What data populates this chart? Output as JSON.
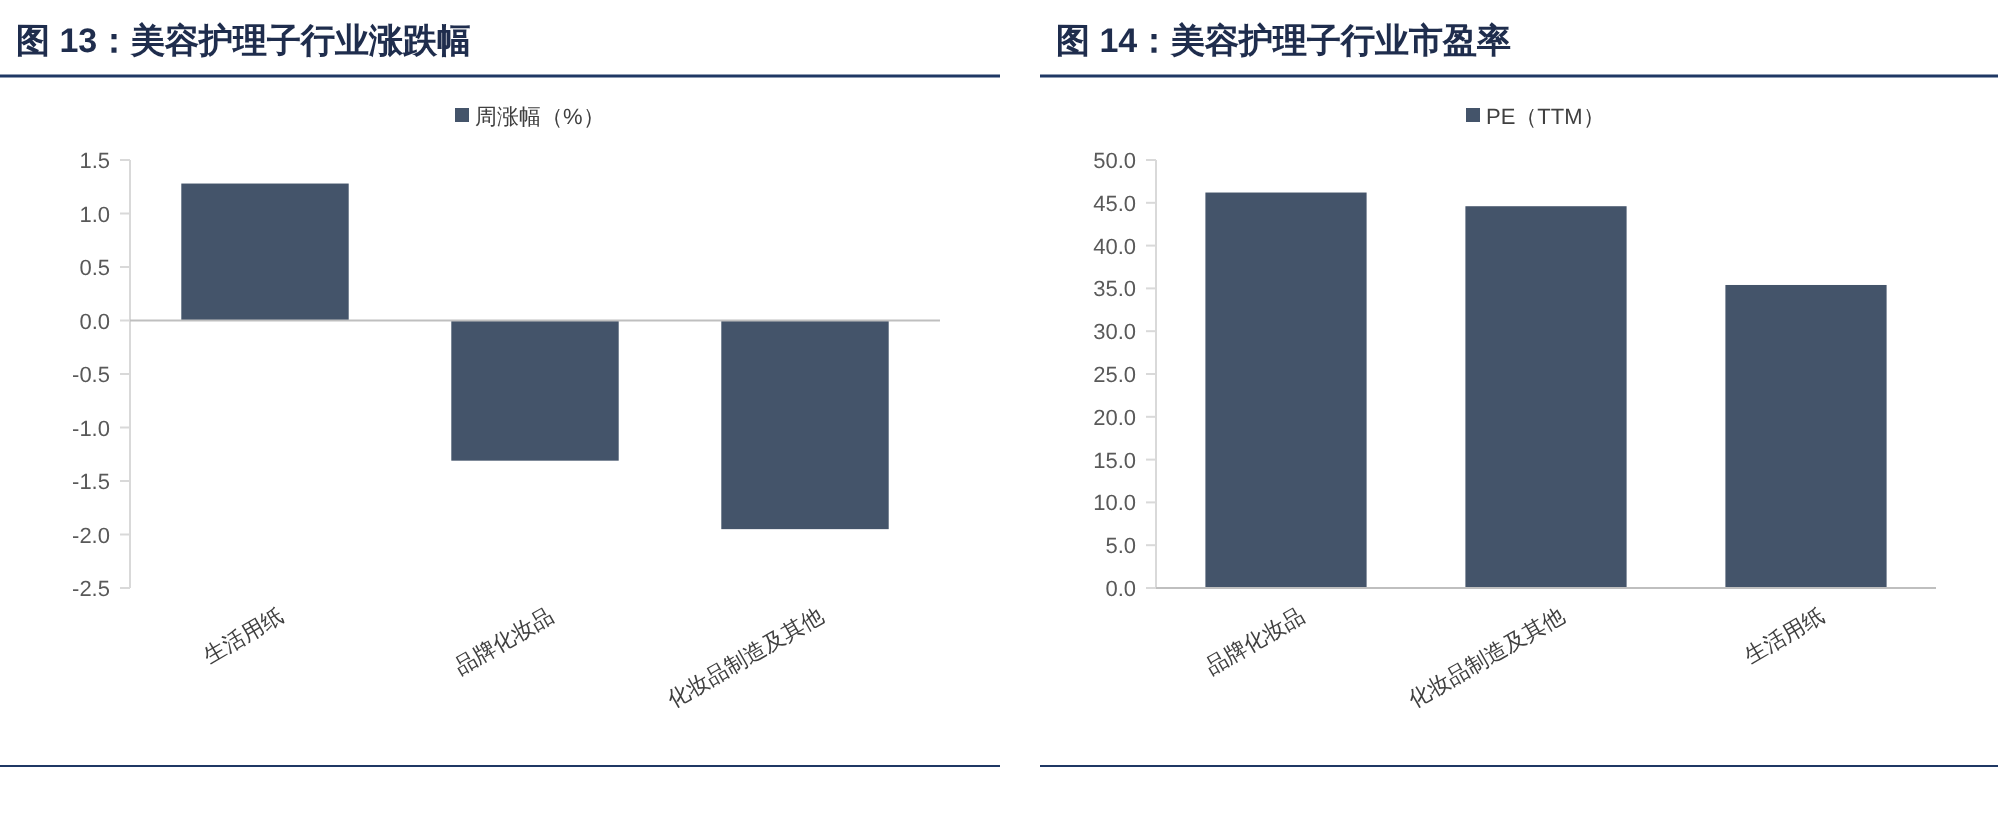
{
  "chart_data": [
    {
      "type": "bar",
      "title": "图 13：美容护理子行业涨跌幅",
      "categories": [
        "生活用纸",
        "品牌化妆品",
        "化妆品制造及其他"
      ],
      "series": [
        {
          "name": "周涨幅（%）",
          "color": "#44546a",
          "values": [
            1.28,
            -1.31,
            -1.95
          ]
        }
      ],
      "ylim": [
        -2.5,
        1.5
      ],
      "yticks": [
        {
          "value": 1.5,
          "label": "1.5"
        },
        {
          "value": 1,
          "label": "1.0"
        },
        {
          "value": 0.5,
          "label": "0.5"
        },
        {
          "value": 0,
          "label": "0.0"
        },
        {
          "value": -0.5,
          "label": "-0.5"
        },
        {
          "value": -1,
          "label": "-1.0"
        },
        {
          "value": -1.5,
          "label": "-1.5"
        },
        {
          "value": -2,
          "label": "-2.0"
        },
        {
          "value": -2.5,
          "label": "-2.5"
        }
      ],
      "legend": "top"
    },
    {
      "type": "bar",
      "title": "图 14：美容护理子行业市盈率",
      "categories": [
        "品牌化妆品",
        "化妆品制造及其他",
        "生活用纸"
      ],
      "series": [
        {
          "name": "PE（TTM）",
          "color": "#44546a",
          "values": [
            46.2,
            44.6,
            35.4
          ]
        }
      ],
      "ylim": [
        0,
        50
      ],
      "yticks": [
        {
          "value": 0,
          "label": "0.0"
        },
        {
          "value": 5,
          "label": "5.0"
        },
        {
          "value": 10,
          "label": "10.0"
        },
        {
          "value": 15,
          "label": "15.0"
        },
        {
          "value": 20,
          "label": "20.0"
        },
        {
          "value": 25,
          "label": "25.0"
        },
        {
          "value": 30,
          "label": "30.0"
        },
        {
          "value": 35,
          "label": "35.0"
        },
        {
          "value": 40,
          "label": "40.0"
        },
        {
          "value": 45,
          "label": "45.0"
        },
        {
          "value": 50,
          "label": "50.0"
        }
      ],
      "legend": "top"
    }
  ]
}
